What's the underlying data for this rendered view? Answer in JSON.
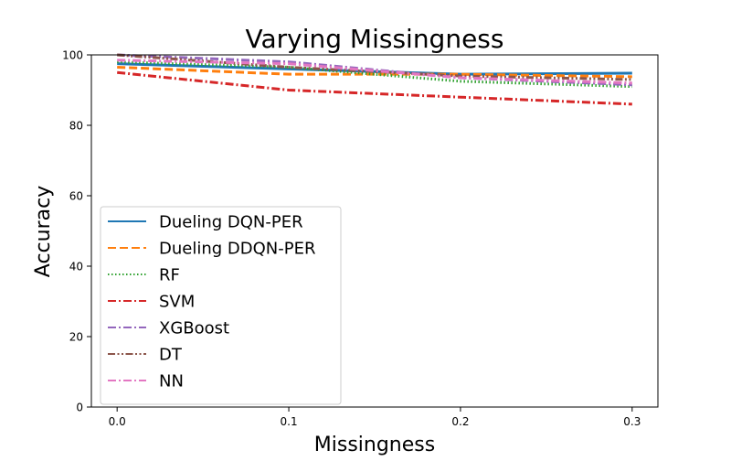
{
  "chart_data": {
    "type": "line",
    "title": "Varying Missingness",
    "xlabel": "Missingness",
    "ylabel": "Accuracy",
    "x": [
      0.0,
      0.1,
      0.2,
      0.3
    ],
    "xticks": [
      0.0,
      0.1,
      0.2,
      0.3
    ],
    "xtick_labels": [
      "0.0",
      "0.1",
      "0.2",
      "0.3"
    ],
    "yticks": [
      0,
      20,
      40,
      60,
      80,
      100
    ],
    "ytick_labels": [
      "0",
      "20",
      "40",
      "60",
      "80",
      "100"
    ],
    "xlim": [
      -0.015,
      0.315
    ],
    "ylim": [
      0,
      100
    ],
    "grid": false,
    "legend_placement": "lower-left",
    "series": [
      {
        "name": "Dueling DQN-PER",
        "values": [
          97.5,
          96.0,
          94.5,
          94.8
        ],
        "color": "#1f77b4",
        "style": "solid"
      },
      {
        "name": "Dueling DDQN-PER",
        "values": [
          96.5,
          94.5,
          94.5,
          93.8
        ],
        "color": "#ff7f0e",
        "style": "dashed"
      },
      {
        "name": "RF",
        "values": [
          98.0,
          96.5,
          92.5,
          91.0
        ],
        "color": "#2ca02c",
        "style": "dotted"
      },
      {
        "name": "SVM",
        "values": [
          95.0,
          90.0,
          88.0,
          86.0
        ],
        "color": "#d62728",
        "style": "dashdot"
      },
      {
        "name": "XGBoost",
        "values": [
          100.0,
          98.0,
          93.5,
          91.5
        ],
        "color": "#9467bd",
        "style": "dashdot"
      },
      {
        "name": "DT",
        "values": [
          100.0,
          96.5,
          94.0,
          93.0
        ],
        "color": "#8c564b",
        "style": "dashdotdot"
      },
      {
        "name": "NN",
        "values": [
          98.5,
          97.5,
          93.5,
          92.0
        ],
        "color": "#e377c2",
        "style": "dashdot"
      }
    ]
  }
}
